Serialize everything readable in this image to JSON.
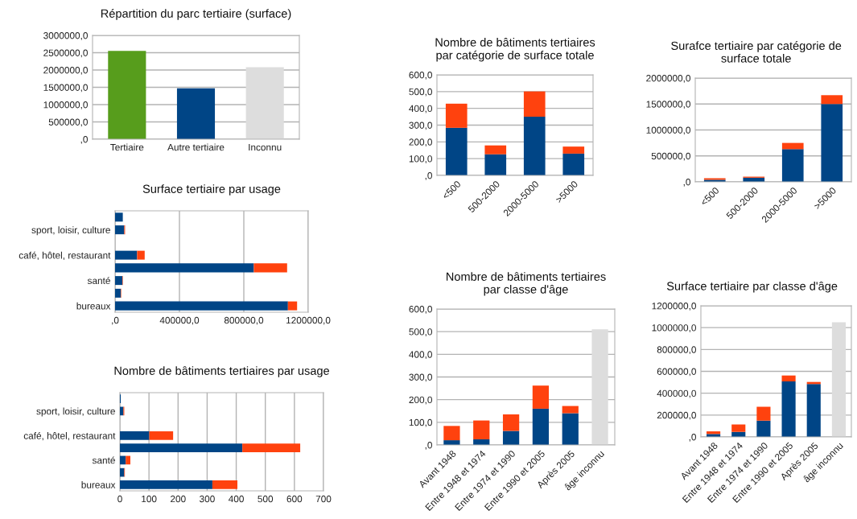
{
  "chart_data": [
    {
      "type": "bar",
      "title": "Répartition du parc tertiaire (surface)",
      "categories": [
        "Tertiaire",
        "Autre tertiaire",
        "Inconnu"
      ],
      "values": [
        2550000,
        1470000,
        2080000
      ],
      "colors": [
        "#579d1c",
        "#004586",
        "#dddddd"
      ],
      "ylim": [
        0,
        3000000
      ],
      "yticks": [
        {
          "value": 0,
          "label": ",0"
        },
        {
          "value": 500000,
          "label": "500000,0"
        },
        {
          "value": 1000000,
          "label": "1000000,0"
        },
        {
          "value": 1500000,
          "label": "1500000,0"
        },
        {
          "value": 2000000,
          "label": "2000000,0"
        },
        {
          "value": 2500000,
          "label": "2500000,0"
        },
        {
          "value": 3000000,
          "label": "3000000,0"
        }
      ],
      "grid": "y"
    },
    {
      "type": "bar",
      "orientation": "horizontal",
      "stacked": true,
      "title": "Surface tertiaire par usage",
      "categories": [
        null,
        "sport, loisir, culture",
        null,
        "café, hôtel, restaurant",
        null,
        "santé",
        null,
        "bureaux"
      ],
      "series": [
        {
          "color": "#004586",
          "values": [
            48000,
            57000,
            0,
            137000,
            862000,
            45000,
            35000,
            1074000
          ]
        },
        {
          "color": "#ff420e",
          "values": [
            0,
            5000,
            0,
            47000,
            207000,
            3000,
            3000,
            57000
          ]
        }
      ],
      "xlim": [
        0,
        1200000
      ],
      "xticks": [
        {
          "value": 0,
          "label": ",0"
        },
        {
          "value": 400000,
          "label": "400000,0"
        },
        {
          "value": 800000,
          "label": "800000,0"
        },
        {
          "value": 1200000,
          "label": "1200000,0"
        }
      ],
      "grid": "x"
    },
    {
      "type": "bar",
      "orientation": "horizontal",
      "stacked": true,
      "title": "Nombre de bâtiments tertiaires par usage",
      "categories": [
        null,
        "sport, loisir, culture",
        null,
        "café, hôtel, restaurant",
        null,
        "santé",
        null,
        "bureaux"
      ],
      "series": [
        {
          "color": "#004586",
          "values": [
            3,
            12,
            0,
            101,
            421,
            20,
            15,
            318
          ]
        },
        {
          "color": "#ff420e",
          "values": [
            0,
            3,
            0,
            82,
            199,
            16,
            2,
            86
          ]
        }
      ],
      "xlim": [
        0,
        700
      ],
      "xticks": [
        0,
        100,
        200,
        300,
        400,
        500,
        600,
        700
      ],
      "grid": "x"
    },
    {
      "type": "bar",
      "stacked": true,
      "title": "Nombre de bâtiments tertiaires\npar catégorie de surface totale",
      "categories": [
        "<500",
        "500-2000",
        "2000-5000",
        ">5000"
      ],
      "series": [
        {
          "color": "#004586",
          "values": [
            284,
            126,
            350,
            130
          ]
        },
        {
          "color": "#ff420e",
          "values": [
            144,
            53,
            151,
            42
          ]
        }
      ],
      "ylim": [
        0,
        600
      ],
      "yticks": [
        {
          "value": 0,
          "label": ",0"
        },
        {
          "value": 100,
          "label": "100,0"
        },
        {
          "value": 200,
          "label": "200,0"
        },
        {
          "value": 300,
          "label": "300,0"
        },
        {
          "value": 400,
          "label": "400,0"
        },
        {
          "value": 500,
          "label": "500,0"
        },
        {
          "value": 600,
          "label": "600,0"
        }
      ],
      "grid": "y"
    },
    {
      "type": "bar",
      "stacked": true,
      "title": "Surafce tertiaire par catégorie de\nsurface totale",
      "categories": [
        "<500",
        "500-2000",
        "2000-5000",
        ">5000"
      ],
      "series": [
        {
          "color": "#004586",
          "values": [
            40000,
            80000,
            630000,
            1500000
          ]
        },
        {
          "color": "#ff420e",
          "values": [
            30000,
            20000,
            120000,
            170000
          ]
        }
      ],
      "ylim": [
        0,
        2000000
      ],
      "yticks": [
        {
          "value": 0,
          "label": ",0"
        },
        {
          "value": 500000,
          "label": "500000,0"
        },
        {
          "value": 1000000,
          "label": "1000000,0"
        },
        {
          "value": 1500000,
          "label": "1500000,0"
        },
        {
          "value": 2000000,
          "label": "2000000,0"
        }
      ],
      "grid": "y"
    },
    {
      "type": "bar",
      "stacked": true,
      "title": "Nombre de bâtiments tertiaires\npar classe d'âge",
      "categories": [
        "Avant 1948",
        "Entre 1948 et 1974",
        "Entre 1974 et 1990",
        "Entre 1990 et 2005",
        "Après 2005",
        "âge inconnu"
      ],
      "series": [
        {
          "color": "#004586",
          "values": [
            21,
            25,
            62,
            160,
            140,
            null
          ]
        },
        {
          "color": "#ff420e",
          "values": [
            63,
            83,
            73,
            102,
            32,
            null
          ]
        },
        {
          "color": "#dddddd",
          "values": [
            null,
            null,
            null,
            null,
            null,
            510
          ]
        }
      ],
      "ylim": [
        0,
        600
      ],
      "yticks": [
        {
          "value": 0,
          "label": ",0"
        },
        {
          "value": 100,
          "label": "100,0"
        },
        {
          "value": 200,
          "label": "200,0"
        },
        {
          "value": 300,
          "label": "300,0"
        },
        {
          "value": 400,
          "label": "400,0"
        },
        {
          "value": 500,
          "label": "500,0"
        },
        {
          "value": 600,
          "label": "600,0"
        }
      ],
      "grid": "y"
    },
    {
      "type": "bar",
      "stacked": true,
      "title": "Surface tertiaire par classe d'âge",
      "categories": [
        "Avant 1948",
        "Entre 1948 et 1974",
        "Entre 1974 et 1990",
        "Entre 1990 et 2005",
        "Après 2005",
        "âge inconnu"
      ],
      "series": [
        {
          "color": "#004586",
          "values": [
            27000,
            46000,
            149000,
            508000,
            484000,
            null
          ]
        },
        {
          "color": "#ff420e",
          "values": [
            24000,
            68000,
            127000,
            54000,
            19000,
            null
          ]
        },
        {
          "color": "#dddddd",
          "values": [
            null,
            null,
            null,
            null,
            null,
            1050000
          ]
        }
      ],
      "ylim": [
        0,
        1200000
      ],
      "yticks": [
        {
          "value": 0,
          "label": ",0"
        },
        {
          "value": 200000,
          "label": "200000,0"
        },
        {
          "value": 400000,
          "label": "400000,0"
        },
        {
          "value": 600000,
          "label": "600000,0"
        },
        {
          "value": 800000,
          "label": "800000,0"
        },
        {
          "value": 1000000,
          "label": "1000000,0"
        },
        {
          "value": 1200000,
          "label": "1200000,0"
        }
      ],
      "grid": "y"
    }
  ]
}
